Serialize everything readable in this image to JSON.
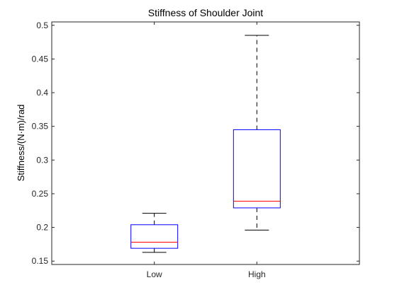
{
  "chart_data": {
    "type": "box",
    "title": "Stiffness of Shoulder Joint",
    "xlabel": "",
    "ylabel": "Stiffness/(N·m)/rad",
    "categories": [
      "Low",
      "High"
    ],
    "boxes": [
      {
        "category": "Low",
        "lower_whisker": 0.163,
        "q1": 0.169,
        "median": 0.178,
        "q3": 0.204,
        "upper_whisker": 0.221
      },
      {
        "category": "High",
        "lower_whisker": 0.196,
        "q1": 0.229,
        "median": 0.239,
        "q3": 0.345,
        "upper_whisker": 0.485
      }
    ],
    "ylim": [
      0.145,
      0.505
    ],
    "yticks": [
      0.15,
      0.2,
      0.25,
      0.3,
      0.35,
      0.4,
      0.45,
      0.5
    ],
    "ytick_labels": [
      "0.15",
      "0.2",
      "0.25",
      "0.3",
      "0.35",
      "0.4",
      "0.45",
      "0.5"
    ],
    "grid": false,
    "colors": {
      "box": "#0000ff",
      "median": "#ff0000",
      "whisker": "#000000",
      "axes": "#262626"
    }
  }
}
